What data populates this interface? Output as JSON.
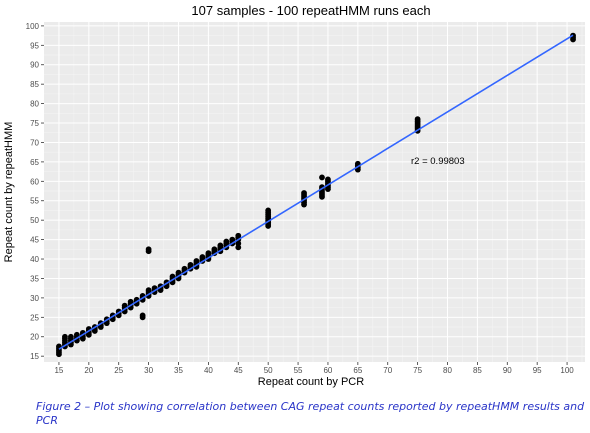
{
  "chart_data": {
    "type": "scatter",
    "title": "107 samples - 100 repeatHMM runs each",
    "xlabel": "Repeat count by PCR",
    "ylabel": "Repeat count by repeatHMM",
    "xlim": [
      12.5,
      103
    ],
    "ylim": [
      13.5,
      101
    ],
    "xticks": [
      15,
      20,
      25,
      30,
      35,
      40,
      45,
      50,
      55,
      60,
      65,
      70,
      75,
      80,
      85,
      90,
      95,
      100,
      105
    ],
    "yticks": [
      15,
      20,
      25,
      30,
      35,
      40,
      45,
      50,
      55,
      60,
      65,
      70,
      75,
      80,
      85,
      90,
      95,
      100
    ],
    "grid": true,
    "annotation": "r2 = 0.99803",
    "fit_line": {
      "x": [
        15,
        101
      ],
      "y": [
        16.8,
        97.6
      ],
      "color": "#3366ff"
    },
    "point_color": "#000000",
    "points": [
      [
        15,
        15.5
      ],
      [
        15,
        16
      ],
      [
        15,
        16.5
      ],
      [
        15,
        17
      ],
      [
        15,
        17.5
      ],
      [
        16,
        17.5
      ],
      [
        16,
        18
      ],
      [
        16,
        18.5
      ],
      [
        16,
        19
      ],
      [
        16,
        19.5
      ],
      [
        16,
        20
      ],
      [
        17,
        18
      ],
      [
        17,
        18.5
      ],
      [
        17,
        19
      ],
      [
        17,
        19.5
      ],
      [
        17,
        20
      ],
      [
        18,
        19
      ],
      [
        18,
        19.5
      ],
      [
        18,
        20
      ],
      [
        18,
        20.5
      ],
      [
        19,
        19.5
      ],
      [
        19,
        20
      ],
      [
        19,
        20.5
      ],
      [
        19,
        21
      ],
      [
        20,
        20.5
      ],
      [
        20,
        21
      ],
      [
        20,
        21.5
      ],
      [
        20,
        22
      ],
      [
        21,
        21.5
      ],
      [
        21,
        22
      ],
      [
        21,
        22.5
      ],
      [
        22,
        22.5
      ],
      [
        22,
        23
      ],
      [
        22,
        23.5
      ],
      [
        23,
        23.5
      ],
      [
        23,
        24
      ],
      [
        23,
        24.5
      ],
      [
        24,
        24.5
      ],
      [
        24,
        25
      ],
      [
        24,
        25.5
      ],
      [
        25,
        25.5
      ],
      [
        25,
        26
      ],
      [
        25,
        26.5
      ],
      [
        26,
        26.5
      ],
      [
        26,
        27
      ],
      [
        26,
        27.5
      ],
      [
        26,
        28
      ],
      [
        27,
        27.5
      ],
      [
        27,
        28
      ],
      [
        27,
        28.5
      ],
      [
        27,
        29
      ],
      [
        28,
        28.5
      ],
      [
        28,
        29
      ],
      [
        28,
        29.5
      ],
      [
        29,
        29.5
      ],
      [
        29,
        30
      ],
      [
        29,
        30.5
      ],
      [
        29,
        25
      ],
      [
        29,
        25.5
      ],
      [
        30,
        30.5
      ],
      [
        30,
        31
      ],
      [
        30,
        31.5
      ],
      [
        30,
        32
      ],
      [
        30,
        42
      ],
      [
        30,
        42.5
      ],
      [
        31,
        31.5
      ],
      [
        31,
        32
      ],
      [
        31,
        32.5
      ],
      [
        32,
        32
      ],
      [
        32,
        32.5
      ],
      [
        32,
        33
      ],
      [
        33,
        33
      ],
      [
        33,
        33.5
      ],
      [
        33,
        34
      ],
      [
        34,
        34
      ],
      [
        34,
        34.5
      ],
      [
        34,
        35
      ],
      [
        34,
        35.5
      ],
      [
        35,
        35
      ],
      [
        35,
        35.5
      ],
      [
        35,
        36
      ],
      [
        35,
        36.5
      ],
      [
        36,
        36.5
      ],
      [
        36,
        37
      ],
      [
        36,
        37.5
      ],
      [
        37,
        37.5
      ],
      [
        37,
        38
      ],
      [
        37,
        38.5
      ],
      [
        38,
        38
      ],
      [
        38,
        38.5
      ],
      [
        38,
        39
      ],
      [
        38,
        39.5
      ],
      [
        39,
        39.5
      ],
      [
        39,
        40
      ],
      [
        39,
        40.5
      ],
      [
        40,
        40
      ],
      [
        40,
        40.5
      ],
      [
        40,
        41
      ],
      [
        40,
        41.5
      ],
      [
        41,
        41.5
      ],
      [
        41,
        42
      ],
      [
        41,
        42.5
      ],
      [
        42,
        42
      ],
      [
        42,
        42.5
      ],
      [
        42,
        43
      ],
      [
        42,
        43.5
      ],
      [
        43,
        43
      ],
      [
        43,
        43.5
      ],
      [
        43,
        44
      ],
      [
        43,
        44.5
      ],
      [
        44,
        44
      ],
      [
        44,
        44.5
      ],
      [
        44,
        45
      ],
      [
        45,
        43
      ],
      [
        45,
        44
      ],
      [
        45,
        45
      ],
      [
        45,
        45.5
      ],
      [
        45,
        46
      ],
      [
        50,
        48.5
      ],
      [
        50,
        49
      ],
      [
        50,
        49.5
      ],
      [
        50,
        50
      ],
      [
        50,
        50.5
      ],
      [
        50,
        51
      ],
      [
        50,
        51.5
      ],
      [
        50,
        52
      ],
      [
        50,
        52.5
      ],
      [
        56,
        54
      ],
      [
        56,
        54.5
      ],
      [
        56,
        55
      ],
      [
        56,
        55.5
      ],
      [
        56,
        56
      ],
      [
        56,
        56.5
      ],
      [
        56,
        57
      ],
      [
        59,
        56
      ],
      [
        59,
        56.5
      ],
      [
        59,
        57
      ],
      [
        59,
        57.5
      ],
      [
        59,
        58
      ],
      [
        59,
        58.5
      ],
      [
        59,
        61
      ],
      [
        60,
        58
      ],
      [
        60,
        58.5
      ],
      [
        60,
        59
      ],
      [
        60,
        59.5
      ],
      [
        60,
        60
      ],
      [
        60,
        60.5
      ],
      [
        65,
        63
      ],
      [
        65,
        63.5
      ],
      [
        65,
        64
      ],
      [
        65,
        64.5
      ],
      [
        75,
        73
      ],
      [
        75,
        73.5
      ],
      [
        75,
        74
      ],
      [
        75,
        74.5
      ],
      [
        75,
        75
      ],
      [
        75,
        75.5
      ],
      [
        75,
        76
      ],
      [
        101,
        96.5
      ],
      [
        101,
        97
      ],
      [
        101,
        97.5
      ]
    ]
  },
  "caption": "Figure 2 – Plot showing correlation between CAG repeat counts reported by repeatHMM results and PCR"
}
